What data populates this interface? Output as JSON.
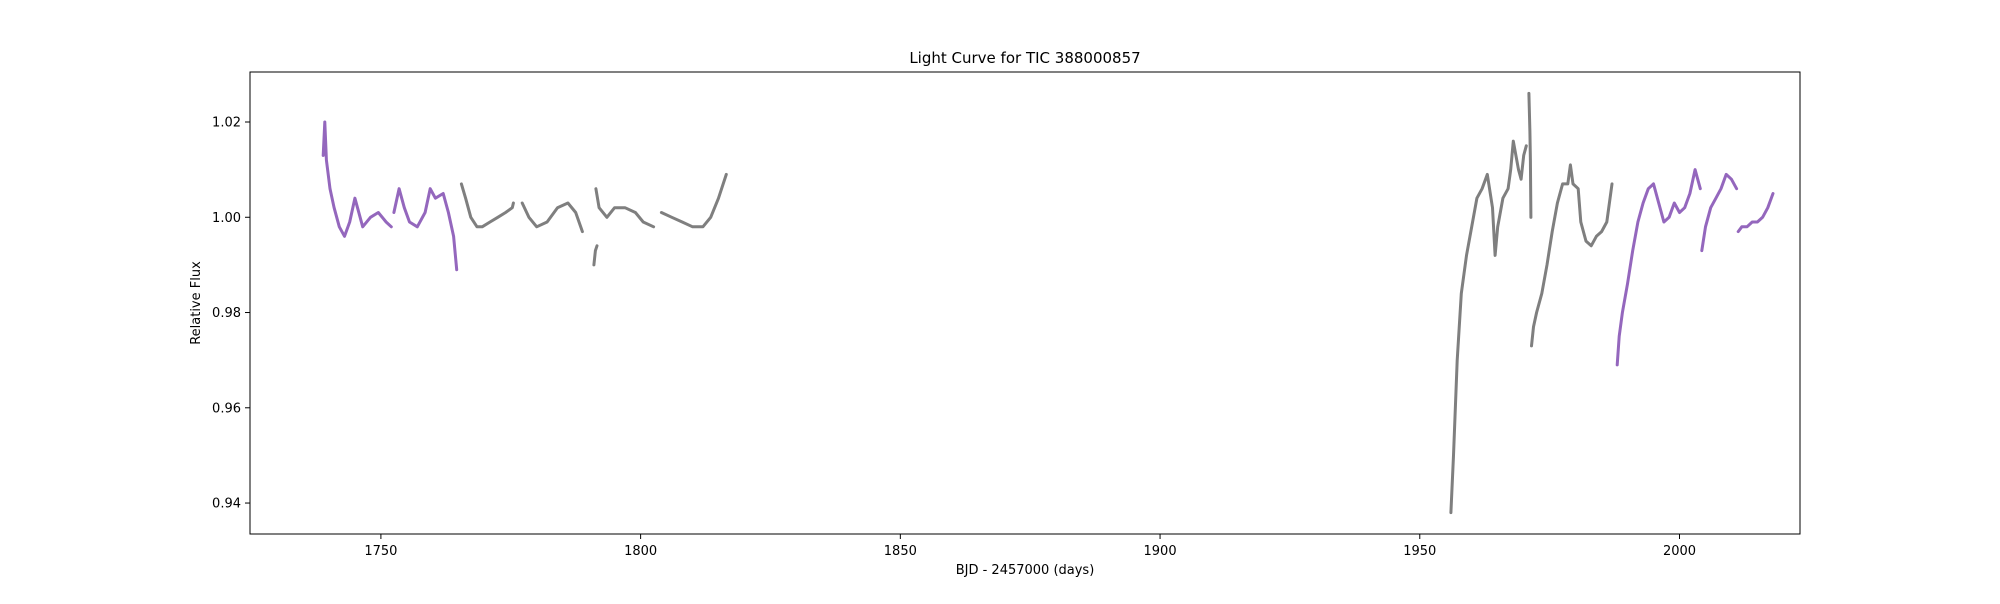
{
  "chart_data": {
    "type": "scatter",
    "title": "Light Curve for TIC 388000857",
    "xlabel": "BJD - 2457000 (days)",
    "ylabel": "Relative Flux",
    "xlim": [
      1724.8,
      2023.2
    ],
    "ylim": [
      0.9335,
      1.0305
    ],
    "x_ticks": [
      1750,
      1800,
      1850,
      1900,
      1950,
      2000
    ],
    "x_tick_labels": [
      "1750",
      "1800",
      "1850",
      "1900",
      "1950",
      "2000"
    ],
    "y_ticks": [
      0.94,
      0.96,
      0.98,
      1.0,
      1.02
    ],
    "y_tick_labels": [
      "0.94",
      "0.96",
      "0.98",
      "1.00",
      "1.02"
    ],
    "grid": false,
    "legend": "none",
    "colors": {
      "purple": "#9467bd",
      "gray": "#7f7f7f",
      "axes": "#000000",
      "background": "#ffffff"
    },
    "series": [
      {
        "color": "purple",
        "segments": [
          [
            [
              1738.9,
              1.013
            ],
            [
              1739.2,
              1.02
            ],
            [
              1739.5,
              1.012
            ],
            [
              1740.2,
              1.006
            ],
            [
              1741.0,
              1.002
            ],
            [
              1742.0,
              0.998
            ],
            [
              1743.0,
              0.996
            ],
            [
              1744.0,
              0.999
            ],
            [
              1745.0,
              1.004
            ],
            [
              1745.5,
              1.002
            ],
            [
              1746.5,
              0.998
            ],
            [
              1748.0,
              1.0
            ],
            [
              1749.5,
              1.001
            ],
            [
              1751.0,
              0.999
            ],
            [
              1752.0,
              0.998
            ]
          ],
          [
            [
              1752.5,
              1.001
            ],
            [
              1753.5,
              1.006
            ],
            [
              1754.5,
              1.002
            ],
            [
              1755.5,
              0.999
            ],
            [
              1757.0,
              0.998
            ],
            [
              1758.5,
              1.001
            ],
            [
              1759.5,
              1.006
            ],
            [
              1760.5,
              1.004
            ],
            [
              1762.0,
              1.005
            ],
            [
              1763.0,
              1.001
            ],
            [
              1764.0,
              0.996
            ],
            [
              1764.6,
              0.989
            ]
          ]
        ]
      },
      {
        "color": "gray",
        "segments": [
          [
            [
              1765.5,
              1.007
            ],
            [
              1766.3,
              1.004
            ],
            [
              1767.3,
              1.0
            ],
            [
              1768.5,
              0.998
            ],
            [
              1769.5,
              0.998
            ],
            [
              1771.0,
              0.999
            ],
            [
              1772.5,
              1.0
            ],
            [
              1774.0,
              1.001
            ],
            [
              1775.3,
              1.002
            ],
            [
              1775.5,
              1.003
            ]
          ],
          [
            [
              1777.2,
              1.003
            ],
            [
              1778.5,
              1.0
            ],
            [
              1780.0,
              0.998
            ],
            [
              1782.0,
              0.999
            ],
            [
              1784.0,
              1.002
            ],
            [
              1786.0,
              1.003
            ],
            [
              1787.5,
              1.001
            ],
            [
              1788.8,
              0.997
            ]
          ],
          [
            [
              1791.0,
              0.99
            ],
            [
              1791.3,
              0.993
            ],
            [
              1791.6,
              0.994
            ]
          ],
          [
            [
              1791.4,
              1.006
            ],
            [
              1792.0,
              1.002
            ],
            [
              1793.5,
              1.0
            ],
            [
              1795.0,
              1.002
            ],
            [
              1797.0,
              1.002
            ],
            [
              1799.0,
              1.001
            ],
            [
              1800.5,
              0.999
            ],
            [
              1802.5,
              0.998
            ]
          ],
          [
            [
              1804.0,
              1.001
            ],
            [
              1806.0,
              1.0
            ],
            [
              1808.0,
              0.999
            ],
            [
              1810.0,
              0.998
            ],
            [
              1812.0,
              0.998
            ],
            [
              1813.5,
              1.0
            ],
            [
              1815.0,
              1.004
            ],
            [
              1816.5,
              1.009
            ]
          ],
          [
            [
              1956.0,
              0.938
            ],
            [
              1956.5,
              0.95
            ],
            [
              1957.2,
              0.97
            ],
            [
              1958.0,
              0.984
            ],
            [
              1959.0,
              0.992
            ],
            [
              1960.0,
              0.998
            ],
            [
              1961.0,
              1.004
            ],
            [
              1962.0,
              1.006
            ],
            [
              1963.0,
              1.009
            ],
            [
              1964.0,
              1.002
            ],
            [
              1964.5,
              0.992
            ],
            [
              1965.0,
              0.998
            ],
            [
              1966.0,
              1.004
            ],
            [
              1967.0,
              1.006
            ],
            [
              1967.5,
              1.01
            ],
            [
              1968.0,
              1.016
            ],
            [
              1968.5,
              1.013
            ],
            [
              1969.0,
              1.01
            ],
            [
              1969.5,
              1.008
            ],
            [
              1970.0,
              1.013
            ],
            [
              1970.5,
              1.015
            ]
          ],
          [
            [
              1971.0,
              1.026
            ],
            [
              1971.1,
              1.022
            ],
            [
              1971.2,
              1.018
            ],
            [
              1971.3,
              1.012
            ],
            [
              1971.4,
              1.0
            ]
          ],
          [
            [
              1971.5,
              0.973
            ],
            [
              1971.9,
              0.977
            ],
            [
              1972.5,
              0.98
            ],
            [
              1973.5,
              0.984
            ],
            [
              1974.5,
              0.99
            ],
            [
              1975.5,
              0.997
            ],
            [
              1976.5,
              1.003
            ],
            [
              1977.5,
              1.007
            ],
            [
              1978.5,
              1.007
            ],
            [
              1979.0,
              1.011
            ],
            [
              1979.5,
              1.007
            ],
            [
              1980.5,
              1.006
            ],
            [
              1981.0,
              0.999
            ],
            [
              1982.0,
              0.995
            ],
            [
              1983.0,
              0.994
            ],
            [
              1984.0,
              0.996
            ],
            [
              1985.0,
              0.997
            ],
            [
              1986.0,
              0.999
            ],
            [
              1986.5,
              1.003
            ],
            [
              1987.0,
              1.007
            ]
          ]
        ]
      },
      {
        "color": "purple",
        "segments": [
          [
            [
              1988.0,
              0.969
            ],
            [
              1988.4,
              0.975
            ],
            [
              1989.0,
              0.98
            ],
            [
              1990.0,
              0.986
            ],
            [
              1991.0,
              0.993
            ],
            [
              1992.0,
              0.999
            ],
            [
              1993.0,
              1.003
            ],
            [
              1994.0,
              1.006
            ],
            [
              1995.0,
              1.007
            ],
            [
              1996.0,
              1.003
            ],
            [
              1997.0,
              0.999
            ],
            [
              1998.0,
              1.0
            ],
            [
              1999.0,
              1.003
            ],
            [
              2000.0,
              1.001
            ],
            [
              2001.0,
              1.002
            ],
            [
              2002.0,
              1.005
            ],
            [
              2003.0,
              1.01
            ],
            [
              2003.5,
              1.008
            ],
            [
              2004.0,
              1.006
            ]
          ],
          [
            [
              2004.3,
              0.993
            ],
            [
              2005.0,
              0.998
            ],
            [
              2006.0,
              1.002
            ],
            [
              2007.0,
              1.004
            ],
            [
              2008.0,
              1.006
            ],
            [
              2009.0,
              1.009
            ],
            [
              2010.0,
              1.008
            ],
            [
              2011.0,
              1.006
            ]
          ],
          [
            [
              2011.3,
              0.997
            ],
            [
              2012.0,
              0.998
            ],
            [
              2013.0,
              0.998
            ],
            [
              2014.0,
              0.999
            ],
            [
              2015.0,
              0.999
            ],
            [
              2016.0,
              1.0
            ],
            [
              2017.0,
              1.002
            ],
            [
              2018.0,
              1.005
            ]
          ]
        ]
      }
    ]
  }
}
